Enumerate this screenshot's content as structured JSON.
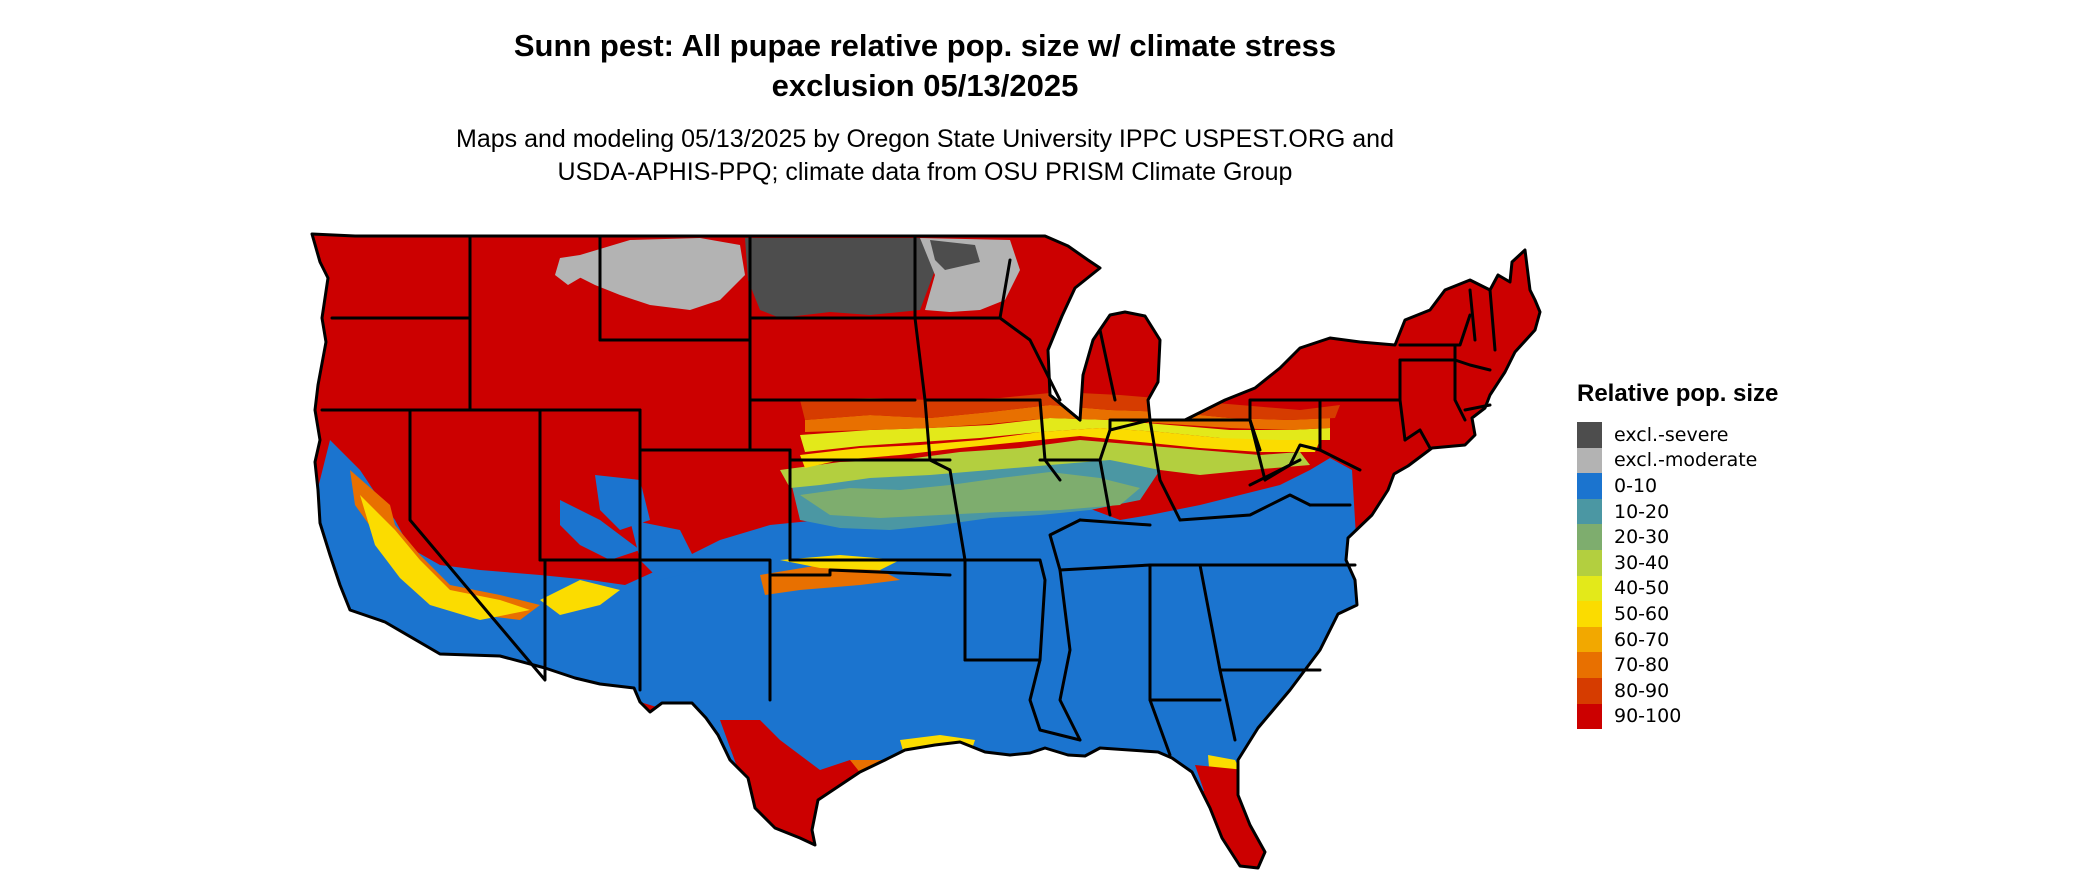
{
  "title_line1": "Sunn pest: All pupae relative pop. size w/ climate stress",
  "title_line2": "exclusion 05/13/2025",
  "subtitle_line1": "Maps and modeling 05/13/2025 by Oregon State University IPPC USPEST.ORG and",
  "subtitle_line2": "USDA-APHIS-PPQ; climate data from OSU PRISM Climate Group",
  "legend": {
    "title": "Relative pop. size",
    "items": [
      {
        "label": "excl.-severe",
        "color": "#4d4d4d"
      },
      {
        "label": "excl.-moderate",
        "color": "#b3b3b3"
      },
      {
        "label": "0-10",
        "color": "#1b74cf"
      },
      {
        "label": "10-20",
        "color": "#4b97a3"
      },
      {
        "label": "20-30",
        "color": "#7ead6e"
      },
      {
        "label": "30-40",
        "color": "#b3cf3f"
      },
      {
        "label": "40-50",
        "color": "#e3e91a"
      },
      {
        "label": "50-60",
        "color": "#fbdc00"
      },
      {
        "label": "60-70",
        "color": "#f2a800"
      },
      {
        "label": "70-80",
        "color": "#e87000"
      },
      {
        "label": "80-90",
        "color": "#d63c00"
      },
      {
        "label": "90-100",
        "color": "#cc0000"
      }
    ]
  }
}
